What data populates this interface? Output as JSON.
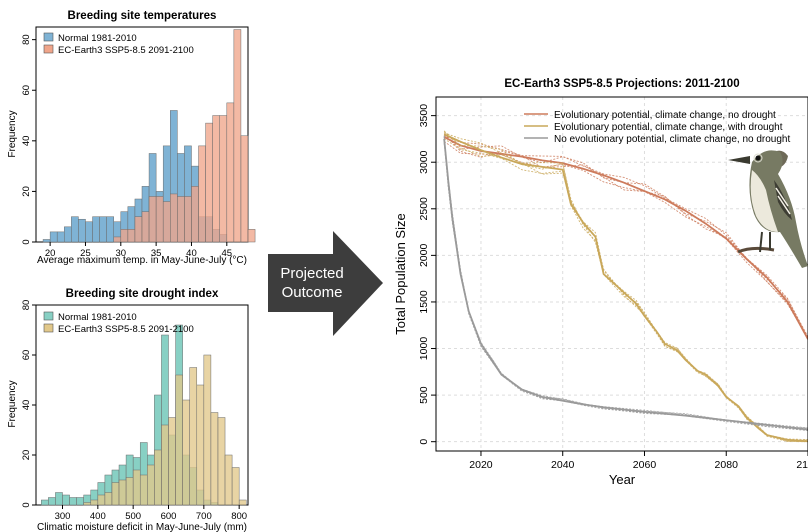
{
  "colors": {
    "normal_temp": "#7fb3d5",
    "future_temp": "#f0a58a",
    "normal_drought": "#88d0c4",
    "future_drought": "#e2c88a",
    "no_drought_line": "#cd7b5c",
    "with_drought_line": "#c9a85a",
    "no_evo_line": "#9a9a9a",
    "arrow": "#3d3d3d",
    "grid": "#dddddd"
  },
  "arrow": {
    "line1": "Projected",
    "line2": "Outcome"
  },
  "bird": {
    "icon": "flycatcher-bird-icon"
  },
  "chart_data": [
    {
      "type": "histogram",
      "title": "Breeding site temperatures",
      "xlabel": "Average maximum temp. in May-June-July (°C)",
      "ylabel": "Frequency",
      "xlim": [
        18,
        48
      ],
      "ylim": [
        0,
        85
      ],
      "xticks": [
        20,
        25,
        30,
        35,
        40,
        45
      ],
      "yticks": [
        0,
        20,
        40,
        60,
        80
      ],
      "bin_start": 19,
      "bin_width": 1,
      "legend_position": "top-left",
      "series": [
        {
          "name": "Normal 1981-2010",
          "values": [
            1,
            4,
            4,
            6,
            10,
            9,
            8,
            10,
            10,
            10,
            8,
            12,
            14,
            17,
            22,
            35,
            20,
            38,
            52,
            35,
            38,
            30,
            10,
            10,
            5,
            3,
            0,
            0
          ]
        },
        {
          "name": "EC-Earth3 SSP5-8.5 2091-2100",
          "values": [
            0,
            0,
            0,
            0,
            0,
            0,
            0,
            0,
            0,
            0,
            2,
            5,
            5,
            10,
            12,
            18,
            18,
            16,
            19,
            18,
            18,
            22,
            38,
            47,
            50,
            50,
            55,
            84,
            42,
            5
          ]
        }
      ]
    },
    {
      "type": "histogram",
      "title": "Breeding site drought index",
      "xlabel": "Climatic moisture deficit in May-June-July (mm)",
      "ylabel": "Frequency",
      "xlim": [
        225,
        825
      ],
      "ylim": [
        0,
        80
      ],
      "xticks": [
        300,
        400,
        500,
        600,
        700,
        800
      ],
      "yticks": [
        0,
        20,
        40,
        60,
        80
      ],
      "bin_start": 240,
      "bin_width": 20,
      "legend_position": "top-left",
      "series": [
        {
          "name": "Normal 1981-2010",
          "values": [
            2,
            3,
            5,
            4,
            3,
            3,
            4,
            6,
            9,
            12,
            14,
            16,
            20,
            19,
            25,
            20,
            44,
            68,
            28,
            72,
            20,
            15,
            6,
            2,
            1,
            0,
            0,
            0,
            0
          ]
        },
        {
          "name": "EC-Earth3 SSP5-8.5 2091-2100",
          "values": [
            0,
            0,
            0,
            0,
            0,
            0,
            1,
            2,
            4,
            5,
            9,
            10,
            11,
            14,
            12,
            16,
            22,
            32,
            35,
            52,
            42,
            55,
            48,
            60,
            37,
            35,
            20,
            15,
            2
          ]
        }
      ]
    },
    {
      "type": "line",
      "title": "EC-Earth3 SSP5-8.5 Projections: 2011-2100",
      "xlabel": "Year",
      "ylabel": "Total Population Size",
      "xlim": [
        2009,
        2100
      ],
      "ylim": [
        -100,
        3700
      ],
      "xticks": [
        2020,
        2040,
        2060,
        2080,
        2100
      ],
      "yticks": [
        0,
        500,
        1000,
        1500,
        2000,
        2500,
        3000,
        3500
      ],
      "grid": true,
      "legend_position": "top-right",
      "series": [
        {
          "name": "Evolutionary potential, climate change, no drought",
          "x": [
            2011,
            2015,
            2020,
            2025,
            2030,
            2035,
            2040,
            2045,
            2050,
            2055,
            2060,
            2065,
            2070,
            2075,
            2080,
            2085,
            2090,
            2095,
            2100
          ],
          "y": [
            3270,
            3180,
            3120,
            3090,
            3060,
            3020,
            2990,
            2930,
            2860,
            2780,
            2690,
            2600,
            2480,
            2340,
            2180,
            1960,
            1760,
            1500,
            1100
          ]
        },
        {
          "name": "Evolutionary potential, climate change, with drought",
          "x": [
            2011,
            2015,
            2020,
            2025,
            2030,
            2035,
            2040,
            2042,
            2045,
            2048,
            2050,
            2052,
            2055,
            2058,
            2060,
            2063,
            2065,
            2068,
            2070,
            2073,
            2075,
            2078,
            2080,
            2083,
            2085,
            2088,
            2090,
            2095,
            2100
          ],
          "y": [
            3300,
            3220,
            3130,
            3050,
            2980,
            2950,
            2920,
            2550,
            2350,
            2200,
            1800,
            1720,
            1600,
            1480,
            1350,
            1180,
            1050,
            980,
            880,
            760,
            720,
            600,
            480,
            380,
            260,
            140,
            70,
            20,
            5
          ]
        },
        {
          "name": "No evolutionary potential, climate change, no drought",
          "x": [
            2011,
            2012,
            2013,
            2015,
            2017,
            2020,
            2023,
            2025,
            2030,
            2035,
            2040,
            2045,
            2050,
            2060,
            2070,
            2080,
            2090,
            2100
          ],
          "y": [
            3250,
            2800,
            2400,
            1800,
            1400,
            1050,
            850,
            720,
            560,
            480,
            440,
            400,
            370,
            320,
            280,
            230,
            180,
            130
          ]
        }
      ]
    }
  ]
}
